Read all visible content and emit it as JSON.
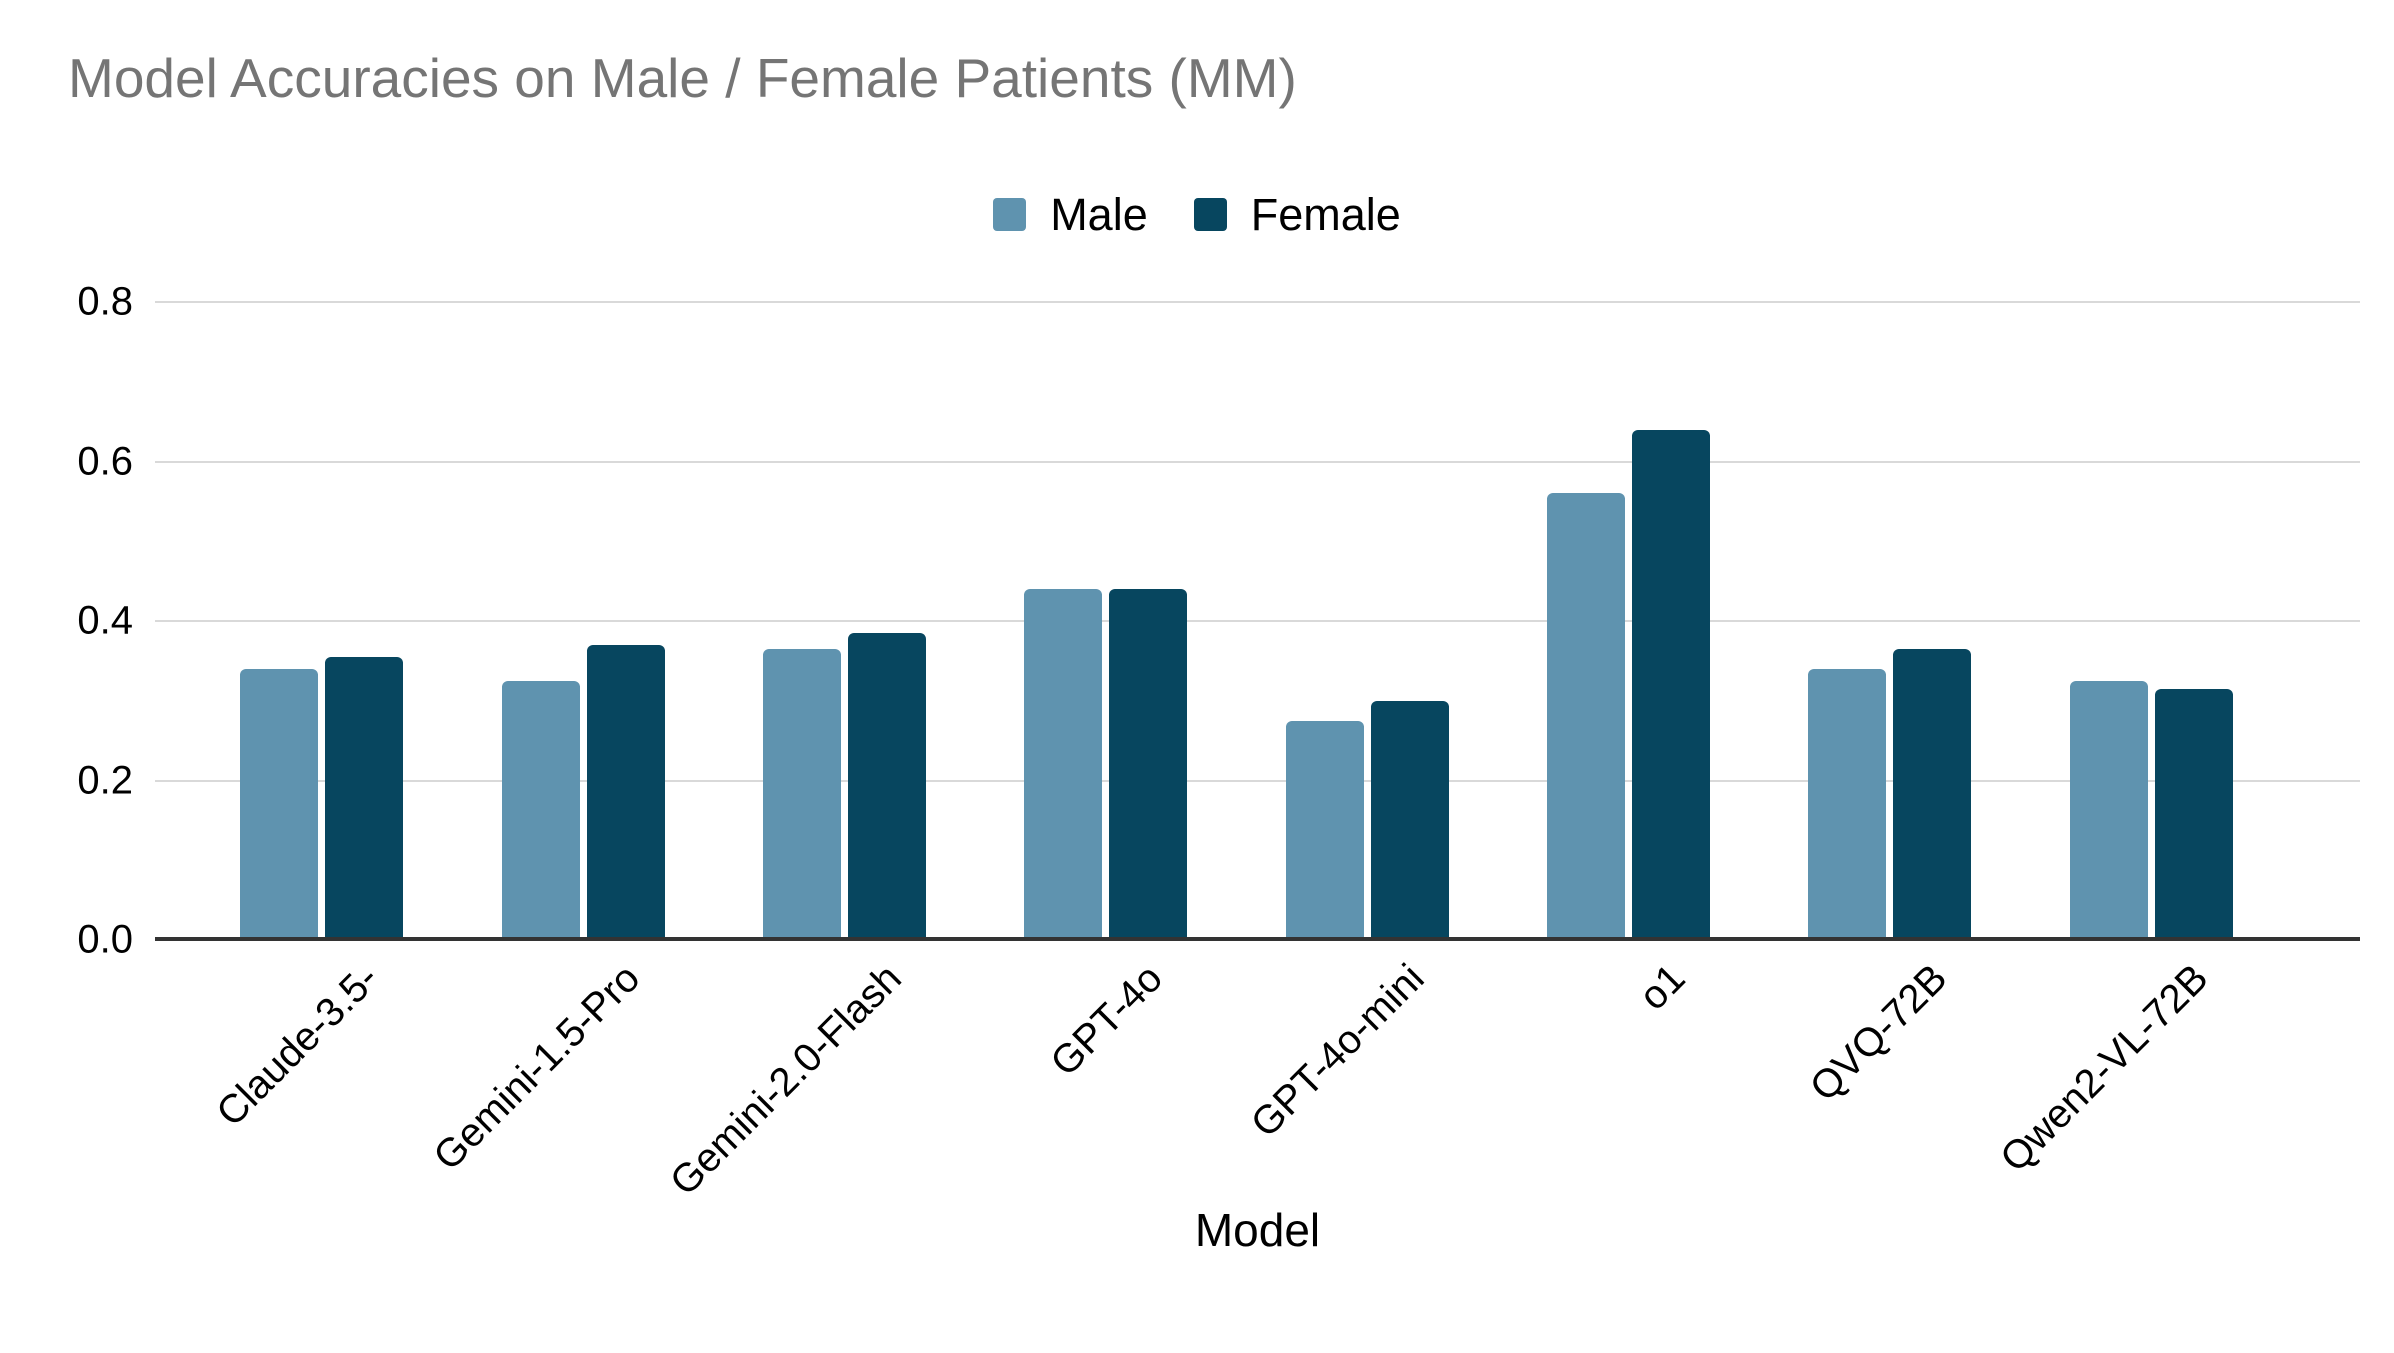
{
  "chart_data": {
    "type": "bar",
    "title": "Model Accuracies on Male / Female Patients (MM)",
    "categories": [
      "Claude-3.5-",
      "Gemini-1.5-Pro",
      "Gemini-2.0-Flash",
      "GPT-4o",
      "GPT-4o-mini",
      "o1",
      "QVQ-72B",
      "Qwen2-VL-72B"
    ],
    "series": [
      {
        "name": "Male",
        "color": "#5f93af",
        "values": [
          0.34,
          0.325,
          0.365,
          0.44,
          0.275,
          0.56,
          0.34,
          0.325
        ]
      },
      {
        "name": "Female",
        "color": "#07465f",
        "values": [
          0.355,
          0.37,
          0.385,
          0.44,
          0.3,
          0.64,
          0.365,
          0.315
        ]
      }
    ],
    "xlabel": "Model",
    "ylabel": "",
    "ylim": [
      0,
      0.8
    ],
    "yticks": [
      "0.0",
      "0.2",
      "0.4",
      "0.6",
      "0.8"
    ],
    "grid": true,
    "legend_position": "top"
  },
  "colors": {
    "title_text": "#757575",
    "axis_text": "#000000",
    "gridline": "#d9d9d9",
    "axis_line": "#333333",
    "background": "#ffffff",
    "male_series": "#5f93af",
    "female_series": "#07465f"
  }
}
